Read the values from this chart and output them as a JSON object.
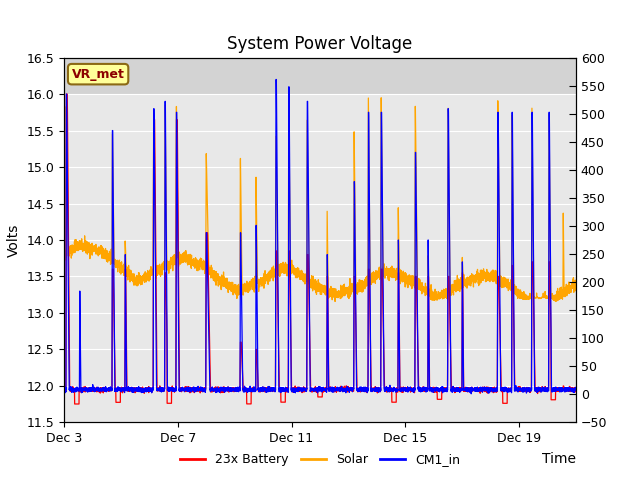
{
  "title": "System Power Voltage",
  "xlabel": "Time",
  "ylabel": "Volts",
  "ylim_left": [
    11.5,
    16.5
  ],
  "ylim_right": [
    -50,
    600
  ],
  "yticks_left": [
    11.5,
    12.0,
    12.5,
    13.0,
    13.5,
    14.0,
    14.5,
    15.0,
    15.5,
    16.0,
    16.5
  ],
  "yticks_right": [
    -50,
    0,
    50,
    100,
    150,
    200,
    250,
    300,
    350,
    400,
    450,
    500,
    550,
    600
  ],
  "xtick_labels": [
    "Dec 3",
    "Dec 7",
    "Dec 11",
    "Dec 15",
    "Dec 19"
  ],
  "xtick_positions": [
    0,
    4,
    8,
    12,
    16
  ],
  "xlim": [
    0,
    18
  ],
  "legend_labels": [
    "23x Battery",
    "Solar",
    "CM1_in"
  ],
  "battery_color": "#FF0000",
  "solar_color": "#FFA500",
  "cm1_color": "#0000FF",
  "vr_met_label": "VR_met",
  "vr_met_bg": "#FFFF99",
  "vr_met_border_color": "#8B6914",
  "vr_met_text_color": "#8B0000",
  "bg_color": "#FFFFFF",
  "plot_bg_color": "#E8E8E8",
  "shade_top_ymin": 16.0,
  "shade_top_ymax": 16.5,
  "shade_top_color": "#D3D3D3",
  "grid_color": "#FFFFFF",
  "title_fontsize": 12,
  "axis_fontsize": 10,
  "tick_fontsize": 9,
  "legend_fontsize": 9,
  "line_width": 0.9,
  "vr_met_fontsize": 9,
  "spike_events": [
    {
      "day": 0.08,
      "bat_pk": 16.0,
      "cm1_pk": 16.0,
      "sol_pk": 15.85,
      "wu": 0.015,
      "wd": 0.12
    },
    {
      "day": 0.55,
      "bat_pk": 11.85,
      "cm1_pk": 13.3,
      "sol_pk": 13.6,
      "wu": 0.01,
      "wd": 0.05
    },
    {
      "day": 1.7,
      "bat_pk": 13.6,
      "cm1_pk": 15.5,
      "sol_pk": 15.5,
      "wu": 0.015,
      "wd": 0.1
    },
    {
      "day": 2.15,
      "bat_pk": 13.6,
      "cm1_pk": 13.8,
      "sol_pk": 14.0,
      "wu": 0.01,
      "wd": 0.06
    },
    {
      "day": 3.15,
      "bat_pk": 15.65,
      "cm1_pk": 15.8,
      "sol_pk": 15.55,
      "wu": 0.018,
      "wd": 0.12
    },
    {
      "day": 3.55,
      "bat_pk": 13.55,
      "cm1_pk": 15.9,
      "sol_pk": 15.95,
      "wu": 0.015,
      "wd": 0.1
    },
    {
      "day": 3.95,
      "bat_pk": 15.65,
      "cm1_pk": 15.75,
      "sol_pk": 15.9,
      "wu": 0.018,
      "wd": 0.11
    },
    {
      "day": 5.0,
      "bat_pk": 14.1,
      "cm1_pk": 14.1,
      "sol_pk": 15.2,
      "wu": 0.02,
      "wd": 0.15
    },
    {
      "day": 6.2,
      "bat_pk": 12.6,
      "cm1_pk": 14.1,
      "sol_pk": 15.2,
      "wu": 0.015,
      "wd": 0.1
    },
    {
      "day": 6.75,
      "bat_pk": 12.5,
      "cm1_pk": 14.2,
      "sol_pk": 14.9,
      "wu": 0.01,
      "wd": 0.08
    },
    {
      "day": 7.45,
      "bat_pk": 13.85,
      "cm1_pk": 16.2,
      "sol_pk": 15.5,
      "wu": 0.018,
      "wd": 0.12
    },
    {
      "day": 7.9,
      "bat_pk": 13.85,
      "cm1_pk": 16.1,
      "sol_pk": 15.85,
      "wu": 0.015,
      "wd": 0.1
    },
    {
      "day": 8.55,
      "bat_pk": 13.8,
      "cm1_pk": 15.9,
      "sol_pk": 15.65,
      "wu": 0.018,
      "wd": 0.12
    },
    {
      "day": 9.25,
      "bat_pk": 13.5,
      "cm1_pk": 13.8,
      "sol_pk": 14.45,
      "wu": 0.01,
      "wd": 0.06
    },
    {
      "day": 10.2,
      "bat_pk": 13.5,
      "cm1_pk": 14.8,
      "sol_pk": 15.5,
      "wu": 0.018,
      "wd": 0.1
    },
    {
      "day": 10.7,
      "bat_pk": 13.6,
      "cm1_pk": 15.75,
      "sol_pk": 15.95,
      "wu": 0.015,
      "wd": 0.1
    },
    {
      "day": 11.15,
      "bat_pk": 13.6,
      "cm1_pk": 15.75,
      "sol_pk": 16.0,
      "wu": 0.018,
      "wd": 0.12
    },
    {
      "day": 11.75,
      "bat_pk": 13.55,
      "cm1_pk": 14.0,
      "sol_pk": 14.5,
      "wu": 0.01,
      "wd": 0.06
    },
    {
      "day": 12.35,
      "bat_pk": 13.5,
      "cm1_pk": 15.2,
      "sol_pk": 15.9,
      "wu": 0.018,
      "wd": 0.12
    },
    {
      "day": 12.8,
      "bat_pk": 13.5,
      "cm1_pk": 14.0,
      "sol_pk": 13.8,
      "wu": 0.01,
      "wd": 0.05
    },
    {
      "day": 13.5,
      "bat_pk": 13.5,
      "cm1_pk": 15.8,
      "sol_pk": 15.9,
      "wu": 0.018,
      "wd": 0.12
    },
    {
      "day": 14.0,
      "bat_pk": 13.55,
      "cm1_pk": 13.7,
      "sol_pk": 13.8,
      "wu": 0.01,
      "wd": 0.05
    },
    {
      "day": 15.25,
      "bat_pk": 13.5,
      "cm1_pk": 15.75,
      "sol_pk": 16.0,
      "wu": 0.018,
      "wd": 0.12
    },
    {
      "day": 15.75,
      "bat_pk": 13.65,
      "cm1_pk": 15.75,
      "sol_pk": 15.8,
      "wu": 0.015,
      "wd": 0.1
    },
    {
      "day": 16.45,
      "bat_pk": 13.7,
      "cm1_pk": 15.75,
      "sol_pk": 15.85,
      "wu": 0.018,
      "wd": 0.11
    },
    {
      "day": 17.05,
      "bat_pk": 13.7,
      "cm1_pk": 15.75,
      "sol_pk": 15.8,
      "wu": 0.015,
      "wd": 0.1
    },
    {
      "day": 17.55,
      "bat_pk": 12.0,
      "cm1_pk": 11.95,
      "sol_pk": 14.45,
      "wu": 0.01,
      "wd": 0.05
    }
  ]
}
